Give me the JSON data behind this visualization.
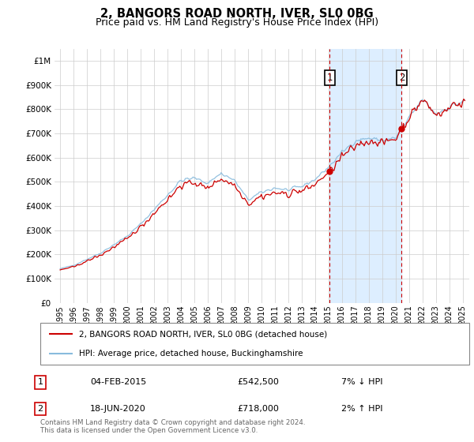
{
  "title": "2, BANGORS ROAD NORTH, IVER, SL0 0BG",
  "subtitle": "Price paid vs. HM Land Registry's House Price Index (HPI)",
  "legend_line1": "2, BANGORS ROAD NORTH, IVER, SL0 0BG (detached house)",
  "legend_line2": "HPI: Average price, detached house, Buckinghamshire",
  "annotation1_date": "04-FEB-2015",
  "annotation1_price": "£542,500",
  "annotation1_hpi": "7% ↓ HPI",
  "annotation2_date": "18-JUN-2020",
  "annotation2_price": "£718,000",
  "annotation2_hpi": "2% ↑ HPI",
  "footer": "Contains HM Land Registry data © Crown copyright and database right 2024.\nThis data is licensed under the Open Government Licence v3.0.",
  "sale1_year": 2015.09,
  "sale1_value": 542500,
  "sale2_year": 2020.46,
  "sale2_value": 718000,
  "hpi_color": "#88bbdd",
  "price_color": "#cc0000",
  "vline_color": "#cc0000",
  "shade_color": "#ddeeff",
  "ylim_min": 0,
  "ylim_max": 1050000,
  "fig_width": 6.0,
  "fig_height": 5.6,
  "dpi": 100
}
